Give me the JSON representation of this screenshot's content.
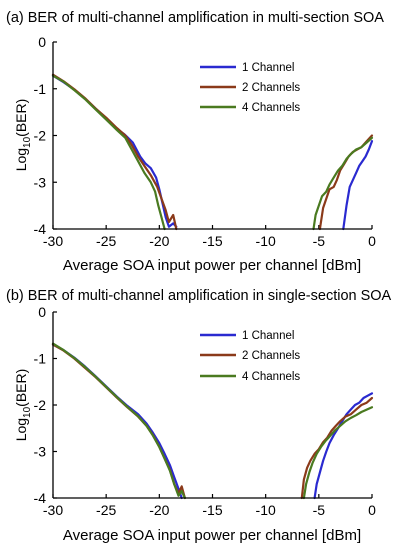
{
  "chart_data": [
    {
      "type": "line",
      "title": "(a) BER of multi-channel amplification in multi-section SOA",
      "xlabel": "Average SOA input power per channel [dBm]",
      "ylabel": "Log10(BER)",
      "xlim": [
        -30,
        0
      ],
      "ylim": [
        -4,
        0
      ],
      "xticks": [
        -30,
        -25,
        -20,
        -15,
        -10,
        -5,
        0
      ],
      "yticks": [
        -4,
        -3,
        -2,
        -1,
        0
      ],
      "legend_position": "top-right",
      "series": [
        {
          "name": "1 Channel",
          "color": "#2a2ad0",
          "segments": [
            [
              [
                -30,
                -0.72
              ],
              [
                -29,
                -0.86
              ],
              [
                -28,
                -1.02
              ],
              [
                -27,
                -1.21
              ],
              [
                -26,
                -1.42
              ],
              [
                -25,
                -1.64
              ],
              [
                -24,
                -1.86
              ],
              [
                -23.3,
                -1.97
              ],
              [
                -22.5,
                -2.15
              ],
              [
                -21.8,
                -2.45
              ],
              [
                -21.3,
                -2.6
              ],
              [
                -20.8,
                -2.7
              ],
              [
                -20.3,
                -2.9
              ],
              [
                -20.0,
                -3.15
              ],
              [
                -19.7,
                -3.45
              ],
              [
                -19.4,
                -3.75
              ],
              [
                -19.1,
                -3.95
              ],
              [
                -18.7,
                -3.88
              ],
              [
                -18.4,
                -3.95
              ]
            ],
            [
              [
                -2.7,
                -4.0
              ],
              [
                -2.4,
                -3.5
              ],
              [
                -2.1,
                -3.1
              ],
              [
                -1.8,
                -2.95
              ],
              [
                -1.5,
                -2.8
              ],
              [
                -1.2,
                -2.65
              ],
              [
                -0.9,
                -2.55
              ],
              [
                -0.6,
                -2.45
              ],
              [
                -0.3,
                -2.3
              ],
              [
                0,
                -2.12
              ]
            ]
          ]
        },
        {
          "name": "2 Channels",
          "color": "#8b3a1a",
          "segments": [
            [
              [
                -30,
                -0.7
              ],
              [
                -29,
                -0.84
              ],
              [
                -28,
                -1.01
              ],
              [
                -27,
                -1.2
              ],
              [
                -26,
                -1.42
              ],
              [
                -25,
                -1.62
              ],
              [
                -24,
                -1.84
              ],
              [
                -23.2,
                -2.0
              ],
              [
                -22.6,
                -2.2
              ],
              [
                -22.0,
                -2.45
              ],
              [
                -21.4,
                -2.65
              ],
              [
                -20.8,
                -2.85
              ],
              [
                -20.2,
                -3.1
              ],
              [
                -19.8,
                -3.35
              ],
              [
                -19.4,
                -3.6
              ],
              [
                -19.1,
                -3.85
              ],
              [
                -18.7,
                -3.7
              ],
              [
                -18.4,
                -4.0
              ]
            ],
            [
              [
                -4.9,
                -4.0
              ],
              [
                -4.6,
                -3.55
              ],
              [
                -4.3,
                -3.35
              ],
              [
                -4.0,
                -3.15
              ],
              [
                -3.6,
                -3.1
              ],
              [
                -3.3,
                -2.95
              ],
              [
                -3.0,
                -2.75
              ],
              [
                -2.6,
                -2.6
              ],
              [
                -2.2,
                -2.45
              ],
              [
                -1.8,
                -2.35
              ],
              [
                -1.4,
                -2.3
              ],
              [
                -1.0,
                -2.25
              ],
              [
                -0.6,
                -2.15
              ],
              [
                -0.2,
                -2.05
              ],
              [
                0,
                -2.0
              ]
            ]
          ]
        },
        {
          "name": "4 Channels",
          "color": "#4a7a20",
          "segments": [
            [
              [
                -30,
                -0.72
              ],
              [
                -29,
                -0.85
              ],
              [
                -28,
                -1.03
              ],
              [
                -27,
                -1.22
              ],
              [
                -26,
                -1.44
              ],
              [
                -25,
                -1.66
              ],
              [
                -24,
                -1.88
              ],
              [
                -23.2,
                -2.05
              ],
              [
                -22.6,
                -2.3
              ],
              [
                -22.0,
                -2.55
              ],
              [
                -21.4,
                -2.8
              ],
              [
                -20.8,
                -3.0
              ],
              [
                -20.4,
                -3.2
              ],
              [
                -20.1,
                -3.5
              ],
              [
                -19.8,
                -3.75
              ],
              [
                -19.5,
                -4.0
              ]
            ],
            [
              [
                -5.5,
                -4.0
              ],
              [
                -5.3,
                -3.7
              ],
              [
                -5.0,
                -3.5
              ],
              [
                -4.7,
                -3.3
              ],
              [
                -4.3,
                -3.2
              ],
              [
                -4.0,
                -3.05
              ],
              [
                -3.6,
                -2.9
              ],
              [
                -3.2,
                -2.75
              ],
              [
                -2.8,
                -2.65
              ],
              [
                -2.4,
                -2.5
              ],
              [
                -2.0,
                -2.4
              ],
              [
                -1.5,
                -2.3
              ],
              [
                -1.0,
                -2.25
              ],
              [
                -0.5,
                -2.15
              ],
              [
                0,
                -2.05
              ]
            ]
          ]
        }
      ]
    },
    {
      "type": "line",
      "title": "(b) BER of multi-channel amplification in single-section SOA",
      "xlabel": "Average SOA input power per channel [dBm]",
      "ylabel": "Log10(BER)",
      "xlim": [
        -30,
        0
      ],
      "ylim": [
        -4,
        0
      ],
      "xticks": [
        -30,
        -25,
        -20,
        -15,
        -10,
        -5,
        0
      ],
      "yticks": [
        -4,
        -3,
        -2,
        -1,
        0
      ],
      "legend_position": "top-right",
      "series": [
        {
          "name": "1 Channel",
          "color": "#2a2ad0",
          "segments": [
            [
              [
                -30,
                -0.7
              ],
              [
                -29,
                -0.82
              ],
              [
                -28,
                -0.98
              ],
              [
                -27,
                -1.17
              ],
              [
                -26,
                -1.38
              ],
              [
                -25,
                -1.6
              ],
              [
                -24,
                -1.82
              ],
              [
                -23,
                -2.02
              ],
              [
                -22,
                -2.2
              ],
              [
                -21.2,
                -2.4
              ],
              [
                -20.6,
                -2.6
              ],
              [
                -20.0,
                -2.82
              ],
              [
                -19.5,
                -3.05
              ],
              [
                -19.0,
                -3.3
              ],
              [
                -18.6,
                -3.55
              ],
              [
                -18.2,
                -3.8
              ],
              [
                -17.9,
                -4.0
              ]
            ],
            [
              [
                -5.4,
                -4.0
              ],
              [
                -5.2,
                -3.7
              ],
              [
                -4.9,
                -3.45
              ],
              [
                -4.6,
                -3.2
              ],
              [
                -4.3,
                -3.0
              ],
              [
                -4.0,
                -2.82
              ],
              [
                -3.6,
                -2.65
              ],
              [
                -3.2,
                -2.5
              ],
              [
                -2.8,
                -2.35
              ],
              [
                -2.4,
                -2.2
              ],
              [
                -2.0,
                -2.1
              ],
              [
                -1.6,
                -2.0
              ],
              [
                -1.2,
                -1.95
              ],
              [
                -0.8,
                -1.85
              ],
              [
                -0.4,
                -1.8
              ],
              [
                0,
                -1.75
              ]
            ]
          ]
        },
        {
          "name": "2 Channels",
          "color": "#8b3a1a",
          "segments": [
            [
              [
                -30,
                -0.7
              ],
              [
                -29,
                -0.83
              ],
              [
                -28,
                -1.0
              ],
              [
                -27,
                -1.2
              ],
              [
                -26,
                -1.4
              ],
              [
                -25,
                -1.62
              ],
              [
                -24,
                -1.84
              ],
              [
                -23,
                -2.05
              ],
              [
                -22,
                -2.25
              ],
              [
                -21.2,
                -2.45
              ],
              [
                -20.6,
                -2.65
              ],
              [
                -20.0,
                -2.9
              ],
              [
                -19.5,
                -3.15
              ],
              [
                -19.0,
                -3.4
              ],
              [
                -18.6,
                -3.7
              ],
              [
                -18.2,
                -3.9
              ],
              [
                -17.9,
                -3.75
              ],
              [
                -17.6,
                -4.0
              ]
            ],
            [
              [
                -6.6,
                -4.0
              ],
              [
                -6.4,
                -3.6
              ],
              [
                -6.1,
                -3.35
              ],
              [
                -5.8,
                -3.2
              ],
              [
                -5.4,
                -3.05
              ],
              [
                -5.0,
                -2.95
              ],
              [
                -4.6,
                -2.8
              ],
              [
                -4.2,
                -2.7
              ],
              [
                -3.8,
                -2.55
              ],
              [
                -3.4,
                -2.45
              ],
              [
                -3.0,
                -2.35
              ],
              [
                -2.5,
                -2.25
              ],
              [
                -2.0,
                -2.2
              ],
              [
                -1.5,
                -2.1
              ],
              [
                -1.0,
                -2.0
              ],
              [
                -0.5,
                -1.95
              ],
              [
                0,
                -1.85
              ]
            ]
          ]
        },
        {
          "name": "4 Channels",
          "color": "#4a7a20",
          "segments": [
            [
              [
                -30,
                -0.68
              ],
              [
                -29,
                -0.82
              ],
              [
                -28,
                -0.99
              ],
              [
                -27,
                -1.18
              ],
              [
                -26,
                -1.39
              ],
              [
                -25,
                -1.61
              ],
              [
                -24,
                -1.83
              ],
              [
                -23,
                -2.04
              ],
              [
                -22,
                -2.24
              ],
              [
                -21.2,
                -2.45
              ],
              [
                -20.6,
                -2.66
              ],
              [
                -20.0,
                -2.9
              ],
              [
                -19.5,
                -3.15
              ],
              [
                -19.0,
                -3.42
              ],
              [
                -18.6,
                -3.7
              ],
              [
                -18.2,
                -3.95
              ],
              [
                -17.9,
                -3.85
              ],
              [
                -17.6,
                -4.0
              ]
            ],
            [
              [
                -6.4,
                -4.0
              ],
              [
                -6.2,
                -3.7
              ],
              [
                -5.9,
                -3.45
              ],
              [
                -5.6,
                -3.25
              ],
              [
                -5.2,
                -3.05
              ],
              [
                -4.8,
                -2.9
              ],
              [
                -4.4,
                -2.78
              ],
              [
                -4.0,
                -2.68
              ],
              [
                -3.5,
                -2.55
              ],
              [
                -3.0,
                -2.45
              ],
              [
                -2.5,
                -2.35
              ],
              [
                -2.0,
                -2.28
              ],
              [
                -1.5,
                -2.22
              ],
              [
                -1.0,
                -2.15
              ],
              [
                -0.5,
                -2.1
              ],
              [
                0,
                -2.05
              ]
            ]
          ]
        }
      ]
    }
  ]
}
